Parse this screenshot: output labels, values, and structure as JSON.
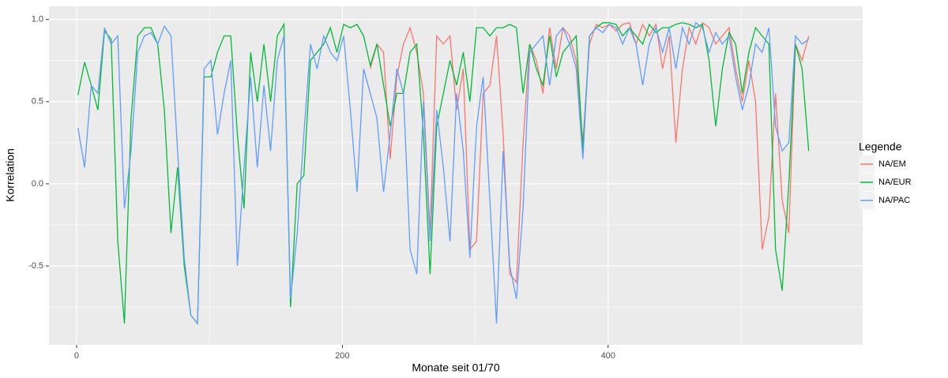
{
  "chart_data": {
    "type": "line",
    "x_label": "Monate seit 01/70",
    "y_label": "Korrelation",
    "legend_title": "Legende",
    "legend_position": "right",
    "grid": true,
    "x": [
      1,
      6,
      11,
      16,
      21,
      26,
      31,
      36,
      41,
      46,
      51,
      56,
      61,
      66,
      71,
      76,
      81,
      86,
      91,
      96,
      101,
      106,
      111,
      116,
      121,
      126,
      131,
      136,
      141,
      146,
      151,
      156,
      161,
      166,
      171,
      176,
      181,
      186,
      191,
      196,
      201,
      206,
      211,
      216,
      221,
      226,
      231,
      236,
      241,
      246,
      251,
      256,
      261,
      266,
      271,
      276,
      281,
      286,
      291,
      296,
      301,
      306,
      311,
      316,
      321,
      326,
      331,
      336,
      341,
      346,
      351,
      356,
      361,
      366,
      371,
      376,
      381,
      386,
      391,
      396,
      401,
      406,
      411,
      416,
      421,
      426,
      431,
      436,
      441,
      446,
      451,
      456,
      461,
      466,
      471,
      476,
      481,
      486,
      491,
      496,
      501,
      506,
      511,
      516,
      521,
      526,
      531,
      536,
      541,
      546,
      551
    ],
    "xlim": [
      -20.8,
      591.6
    ],
    "xticks": [
      0,
      200,
      400
    ],
    "ylim": [
      -0.98,
      1.08
    ],
    "yticks": [
      -0.5,
      {
        "value": 0,
        "label": "0.0"
      },
      0.5,
      {
        "value": 1,
        "label": "1.0"
      }
    ],
    "series": [
      {
        "name": "NA/EM",
        "color": "#f8766d",
        "values": [
          null,
          null,
          null,
          null,
          null,
          null,
          null,
          null,
          null,
          null,
          null,
          null,
          null,
          null,
          null,
          null,
          null,
          null,
          null,
          null,
          null,
          null,
          null,
          null,
          null,
          null,
          null,
          null,
          null,
          null,
          null,
          null,
          null,
          null,
          null,
          null,
          null,
          null,
          null,
          null,
          null,
          null,
          null,
          null,
          0.7,
          0.85,
          0.8,
          0.15,
          0.65,
          0.85,
          0.95,
          0.8,
          0.55,
          -0.3,
          0.9,
          0.85,
          0.9,
          0.45,
          0.7,
          -0.4,
          -0.35,
          0.55,
          0.6,
          0.9,
          0.3,
          -0.55,
          -0.6,
          0.25,
          0.85,
          0.75,
          0.55,
          0.95,
          0.7,
          0.95,
          0.9,
          0.75,
          0.25,
          0.85,
          0.97,
          0.95,
          0.97,
          0.93,
          0.97,
          0.98,
          0.85,
          0.97,
          0.9,
          0.97,
          0.7,
          0.9,
          0.25,
          0.7,
          0.95,
          0.85,
          0.98,
          0.95,
          0.85,
          0.9,
          0.95,
          0.7,
          0.5,
          0.75,
          0.5,
          -0.4,
          -0.2,
          0.55,
          -0.1,
          -0.3,
          0.85,
          0.75,
          0.9
        ]
      },
      {
        "name": "NA/EUR",
        "color": "#00ba38",
        "values": [
          0.54,
          0.74,
          0.6,
          0.45,
          0.93,
          0.88,
          -0.35,
          -0.85,
          0.4,
          0.9,
          0.95,
          0.95,
          0.85,
          0.45,
          -0.3,
          0.1,
          -0.5,
          -0.8,
          -0.85,
          0.65,
          0.65,
          0.8,
          0.9,
          0.9,
          0.3,
          -0.15,
          0.8,
          0.5,
          0.85,
          0.5,
          0.9,
          0.97,
          -0.75,
          0.0,
          0.05,
          0.75,
          0.8,
          0.85,
          0.95,
          0.8,
          0.97,
          0.95,
          0.97,
          0.9,
          0.72,
          0.85,
          0.6,
          0.35,
          0.55,
          0.55,
          0.8,
          0.85,
          0.3,
          -0.55,
          0.35,
          0.55,
          0.75,
          0.6,
          0.8,
          0.5,
          0.95,
          0.95,
          0.9,
          0.95,
          0.95,
          0.97,
          0.95,
          0.55,
          0.85,
          0.7,
          0.6,
          0.9,
          0.65,
          0.8,
          0.85,
          0.9,
          0.2,
          0.9,
          0.95,
          0.98,
          0.98,
          0.97,
          0.9,
          0.95,
          0.9,
          0.85,
          0.97,
          0.92,
          0.95,
          0.95,
          0.97,
          0.98,
          0.97,
          0.95,
          0.97,
          0.75,
          0.35,
          0.7,
          0.92,
          0.85,
          0.55,
          0.8,
          0.95,
          0.9,
          0.85,
          -0.4,
          -0.65,
          0.0,
          0.85,
          0.7,
          0.2
        ]
      },
      {
        "name": "NA/PAC",
        "color": "#619cff",
        "values": [
          0.34,
          0.1,
          0.6,
          0.55,
          0.95,
          0.85,
          0.9,
          -0.15,
          0.2,
          0.8,
          0.9,
          0.92,
          0.85,
          0.96,
          0.9,
          0.2,
          -0.45,
          -0.8,
          -0.85,
          0.7,
          0.75,
          0.3,
          0.55,
          0.75,
          -0.5,
          0.1,
          0.65,
          0.1,
          0.6,
          0.2,
          0.75,
          0.9,
          -0.7,
          -0.3,
          0.3,
          0.85,
          0.7,
          0.9,
          0.8,
          0.75,
          0.9,
          0.45,
          -0.05,
          0.7,
          0.55,
          0.4,
          -0.05,
          0.3,
          0.7,
          0.55,
          -0.4,
          -0.55,
          0.5,
          -0.35,
          0.45,
          0.1,
          -0.35,
          0.55,
          0.2,
          -0.45,
          0.35,
          0.65,
          -0.1,
          -0.85,
          0.2,
          -0.5,
          -0.7,
          -0.15,
          0.8,
          0.85,
          0.9,
          0.6,
          0.9,
          0.95,
          0.85,
          0.7,
          0.15,
          0.9,
          0.95,
          0.92,
          0.97,
          0.95,
          0.85,
          0.95,
          0.85,
          0.6,
          0.85,
          0.95,
          0.8,
          0.95,
          0.7,
          0.95,
          0.85,
          0.98,
          0.95,
          0.8,
          0.92,
          0.85,
          0.9,
          0.65,
          0.45,
          0.6,
          0.85,
          0.8,
          0.95,
          0.35,
          0.2,
          0.25,
          0.9,
          0.85,
          0.88
        ]
      }
    ]
  }
}
